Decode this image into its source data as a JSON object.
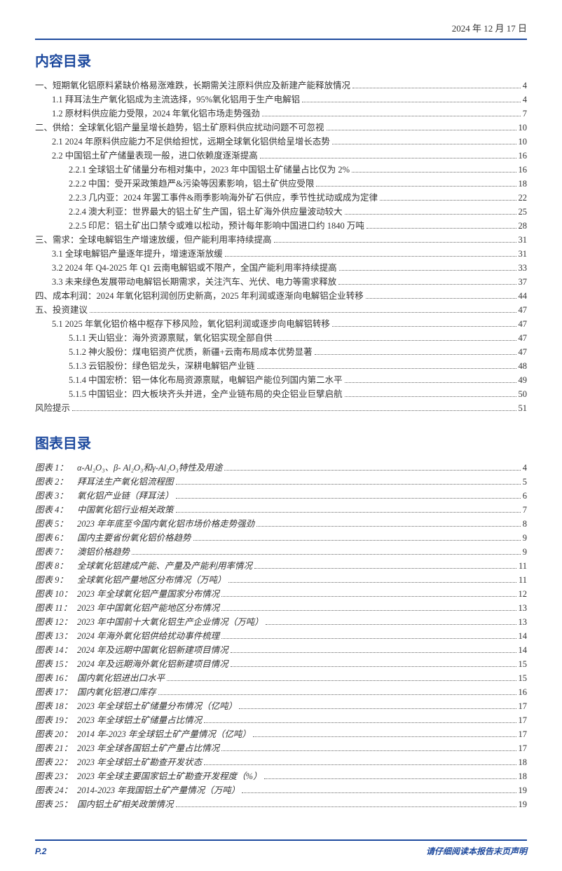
{
  "header": {
    "date": "2024 年 12 月 17 日"
  },
  "colors": {
    "accent": "#1e4a9e",
    "text": "#333333",
    "bg": "#ffffff",
    "dots": "#666666"
  },
  "titles": {
    "toc": "内容目录",
    "figures": "图表目录"
  },
  "toc": [
    {
      "indent": 0,
      "text": "一、短期氧化铝原料紧缺价格易涨难跌，长期需关注原料供应及新建产能释放情况",
      "page": 4
    },
    {
      "indent": 1,
      "text": "1.1 拜耳法生产氧化铝成为主流选择，95%氧化铝用于生产电解铝",
      "page": 4
    },
    {
      "indent": 1,
      "text": "1.2 原材料供应能力受限，2024 年氧化铝市场走势强劲",
      "page": 7
    },
    {
      "indent": 0,
      "text": "二、供给：全球氧化铝产量呈增长趋势，铝土矿原料供应扰动问题不可忽视",
      "page": 10
    },
    {
      "indent": 1,
      "text": "2.1 2024 年原料供应能力不足供给担忧，远期全球氧化铝供给呈增长态势",
      "page": 10
    },
    {
      "indent": 1,
      "text": "2.2 中国铝土矿产储量表现一般，进口依赖度逐渐提高",
      "page": 16
    },
    {
      "indent": 2,
      "text": "2.2.1 全球铝土矿储量分布相对集中，2023 年中国铝土矿储量占比仅为 2%",
      "page": 16
    },
    {
      "indent": 2,
      "text": "2.2.2 中国：受开采政策趋严&污染等因素影响，铝土矿供应受限",
      "page": 18
    },
    {
      "indent": 2,
      "text": "2.2.3 几内亚：2024 年罢工事件&雨季影响海外矿石供应，季节性扰动或成为定律",
      "page": 22
    },
    {
      "indent": 2,
      "text": "2.2.4 澳大利亚：世界最大的铝土矿生产国，铝土矿海外供应量波动较大",
      "page": 25
    },
    {
      "indent": 2,
      "text": "2.2.5 印尼：铝土矿出口禁令或难以松动，预计每年影响中国进口约 1840 万吨",
      "page": 28
    },
    {
      "indent": 0,
      "text": "三、需求：全球电解铝生产增速放缓，但产能利用率持续提高",
      "page": 31
    },
    {
      "indent": 1,
      "text": "3.1 全球电解铝产量逐年提升，增速逐渐放缓",
      "page": 31
    },
    {
      "indent": 1,
      "text": "3.2 2024 年 Q4-2025 年 Q1 云南电解铝或不限产，全国产能利用率持续提高",
      "page": 33
    },
    {
      "indent": 1,
      "text": "3.3 未来绿色发展带动电解铝长期需求，关注汽车、光伏、电力等需求释放",
      "page": 37
    },
    {
      "indent": 0,
      "text": "四、成本利润：2024 年氧化铝利润创历史新高，2025 年利润或逐渐向电解铝企业转移",
      "page": 44
    },
    {
      "indent": 0,
      "text": "五、投资建议",
      "page": 47
    },
    {
      "indent": 1,
      "text": "5.1 2025 年氧化铝价格中枢存下移风险，氧化铝利润或逐步向电解铝转移",
      "page": 47
    },
    {
      "indent": 2,
      "text": "5.1.1 天山铝业：海外资源禀赋，氧化铝实现全部自供",
      "page": 47
    },
    {
      "indent": 2,
      "text": "5.1.2 神火股份：煤电铝资产优质，新疆+云南布局成本优势显著",
      "page": 47
    },
    {
      "indent": 2,
      "text": "5.1.3 云铝股份：绿色铝龙头，深耕电解铝产业链",
      "page": 48
    },
    {
      "indent": 2,
      "text": "5.1.4 中国宏桥：铝一体化布局资源禀赋，电解铝产能位列国内第二水平",
      "page": 49
    },
    {
      "indent": 2,
      "text": "5.1.5 中国铝业：四大板块齐头并进，全产业链布局的央企铝业巨擘启航",
      "page": 50
    },
    {
      "indent": 0,
      "text": "风险提示",
      "page": 51
    }
  ],
  "figures": [
    {
      "num": "图表 1：",
      "text": "α-Al₂O₃、β- Al₂O₃和γ-Al₂O₃特性及用途",
      "page": 4
    },
    {
      "num": "图表 2：",
      "text": "拜耳法生产氧化铝流程图",
      "page": 5
    },
    {
      "num": "图表 3：",
      "text": "氧化铝产业链（拜耳法）",
      "page": 6
    },
    {
      "num": "图表 4：",
      "text": "中国氧化铝行业相关政策",
      "page": 7
    },
    {
      "num": "图表 5：",
      "text": "2023 年年底至今国内氧化铝市场价格走势强劲",
      "page": 8
    },
    {
      "num": "图表 6：",
      "text": "国内主要省份氧化铝价格趋势",
      "page": 9
    },
    {
      "num": "图表 7：",
      "text": "澳铝价格趋势",
      "page": 9
    },
    {
      "num": "图表 8：",
      "text": "全球氧化铝建成产能、产量及产能利用率情况",
      "page": 11
    },
    {
      "num": "图表 9：",
      "text": "全球氧化铝产量地区分布情况（万吨）",
      "page": 11
    },
    {
      "num": "图表 10：",
      "text": "2023 年全球氧化铝产量国家分布情况",
      "page": 12
    },
    {
      "num": "图表 11：",
      "text": "2023 年中国氧化铝产能地区分布情况",
      "page": 13
    },
    {
      "num": "图表 12：",
      "text": "2023 年中国前十大氧化铝生产企业情况（万吨）",
      "page": 13
    },
    {
      "num": "图表 13：",
      "text": "2024 年海外氧化铝供给扰动事件梳理",
      "page": 14
    },
    {
      "num": "图表 14：",
      "text": "2024 年及远期中国氧化铝新建项目情况",
      "page": 14
    },
    {
      "num": "图表 15：",
      "text": "2024 年及远期海外氧化铝新建项目情况",
      "page": 15
    },
    {
      "num": "图表 16：",
      "text": "国内氧化铝进出口水平",
      "page": 15
    },
    {
      "num": "图表 17：",
      "text": "国内氧化铝港口库存",
      "page": 16
    },
    {
      "num": "图表 18：",
      "text": "2023 年全球铝土矿储量分布情况（亿吨）",
      "page": 17
    },
    {
      "num": "图表 19：",
      "text": "2023 年全球铝土矿储量占比情况",
      "page": 17
    },
    {
      "num": "图表 20：",
      "text": "2014 年-2023 年全球铝土矿产量情况（亿吨）",
      "page": 17
    },
    {
      "num": "图表 21：",
      "text": "2023 年全球各国铝土矿产量占比情况",
      "page": 17
    },
    {
      "num": "图表 22：",
      "text": "2023 年全球铝土矿勘查开发状态",
      "page": 18
    },
    {
      "num": "图表 23：",
      "text": "2023 年全球主要国家铝土矿勘查开发程度（%）",
      "page": 18
    },
    {
      "num": "图表 24：",
      "text": "2014-2023 年我国铝土矿产量情况（万吨）",
      "page": 19
    },
    {
      "num": "图表 25：",
      "text": "国内铝土矿相关政策情况",
      "page": 19
    }
  ],
  "footer": {
    "pagenum": "P.2",
    "note": "请仔细阅读本报告末页声明"
  }
}
